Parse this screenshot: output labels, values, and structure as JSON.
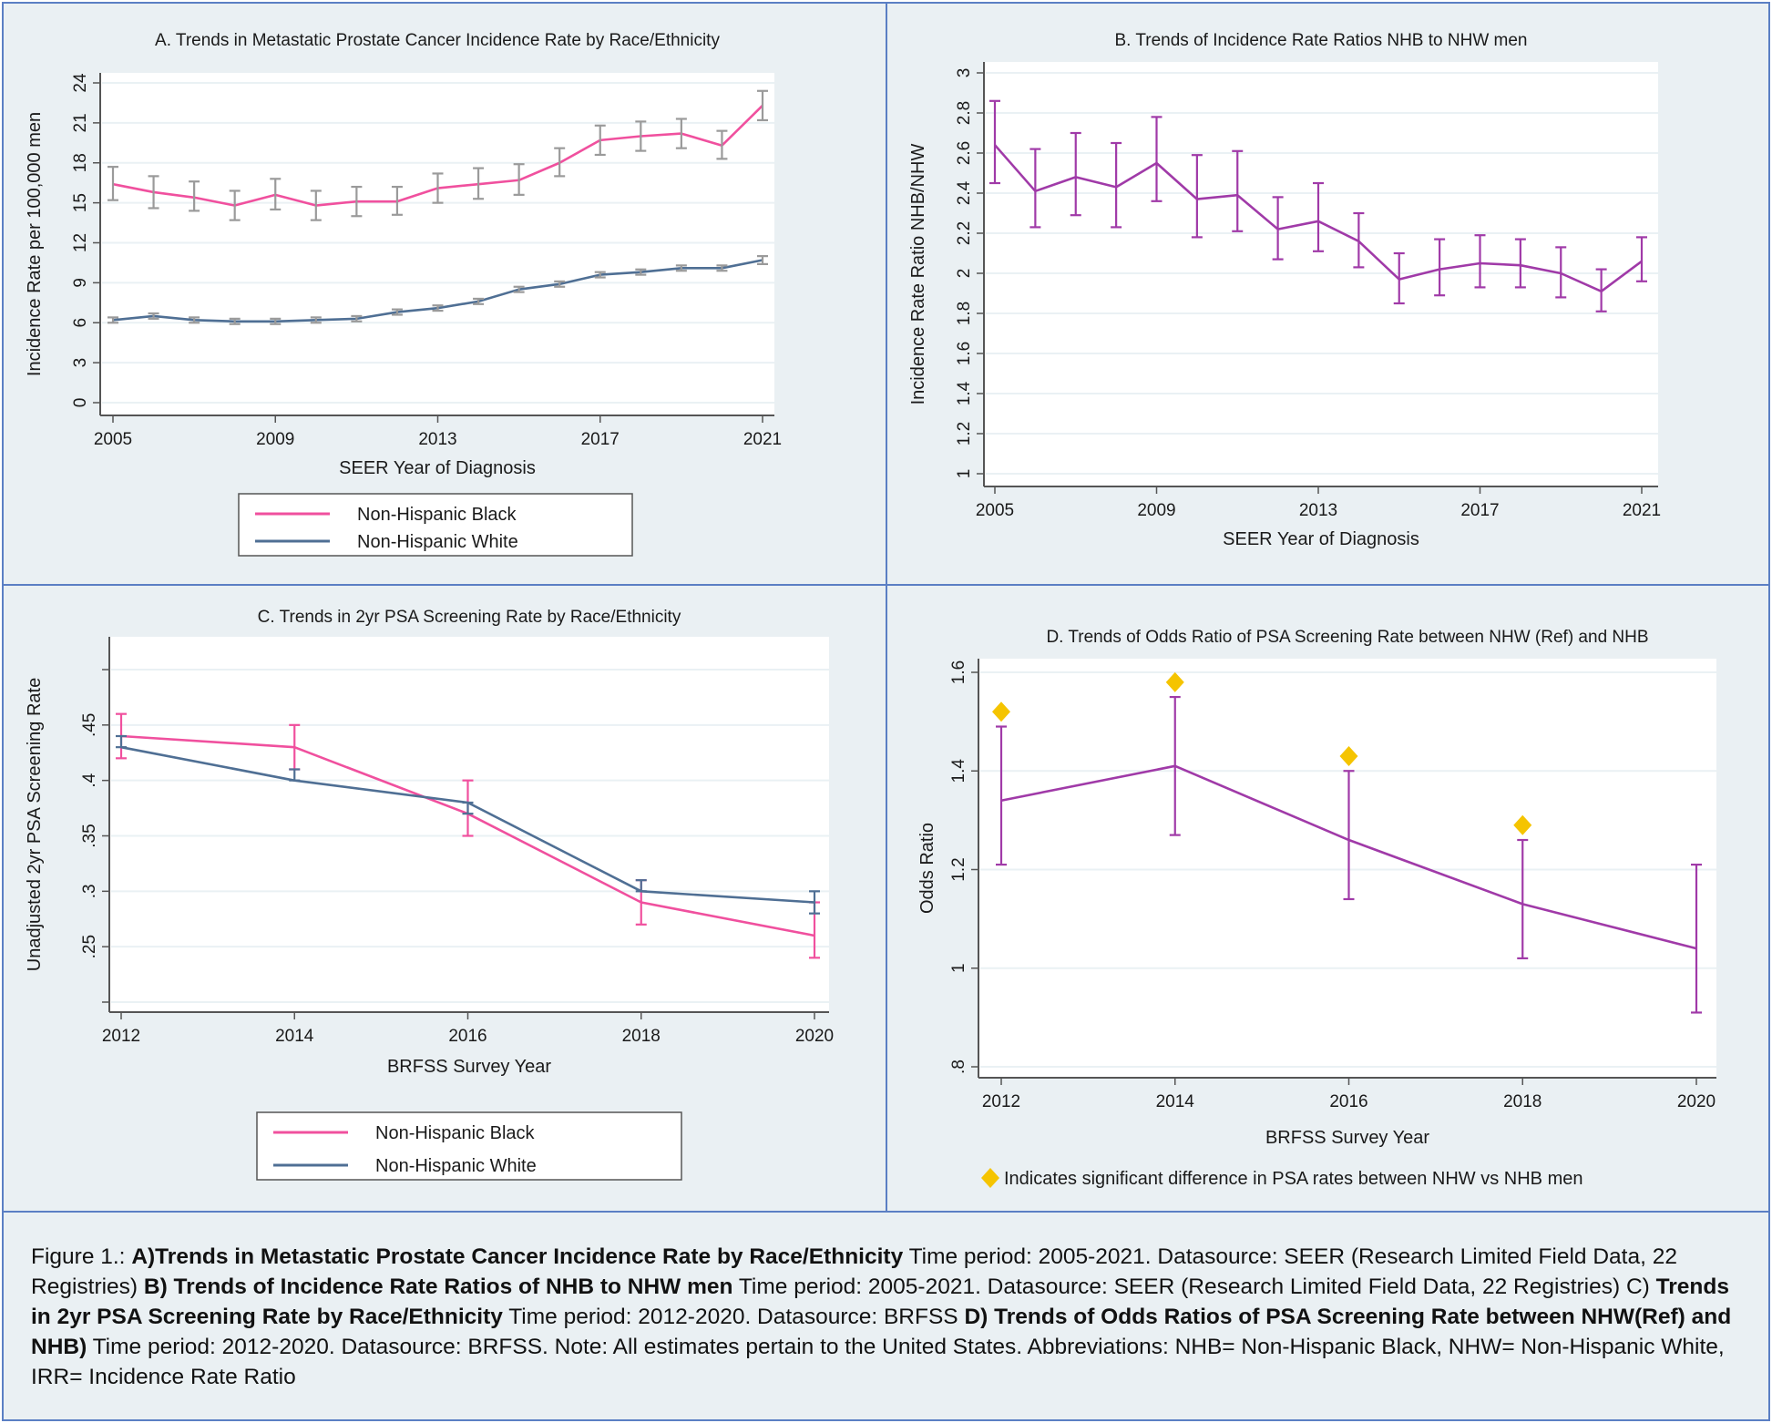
{
  "chart_data": [
    {
      "id": "A",
      "type": "line",
      "title": "A. Trends in Metastatic Prostate Cancer Incidence Rate by Race/Ethnicity",
      "xlabel": "SEER Year of Diagnosis",
      "ylabel": "Incidence Rate per 100,000 men",
      "xlim": [
        2005,
        2021
      ],
      "ylim": [
        0,
        24
      ],
      "xticks": [
        "2005",
        "2009",
        "2013",
        "2017",
        "2021"
      ],
      "yticks": [
        "0",
        "3",
        "6",
        "9",
        "12",
        "15",
        "18",
        "21",
        "24"
      ],
      "grid": true,
      "legend_position": "bottom",
      "x": [
        2005,
        2006,
        2007,
        2008,
        2009,
        2010,
        2011,
        2012,
        2013,
        2014,
        2015,
        2016,
        2017,
        2018,
        2019,
        2020,
        2021
      ],
      "series": [
        {
          "name": "Non-Hispanic Black",
          "color": "#f0509e",
          "values": [
            16.4,
            15.8,
            15.4,
            14.8,
            15.6,
            14.8,
            15.1,
            15.1,
            16.1,
            16.4,
            16.7,
            18.0,
            19.7,
            20.0,
            20.2,
            19.3,
            22.3
          ],
          "ci_low": [
            15.2,
            14.6,
            14.4,
            13.7,
            14.5,
            13.7,
            14.0,
            14.1,
            15.0,
            15.3,
            15.6,
            17.0,
            18.6,
            18.9,
            19.1,
            18.3,
            21.2
          ],
          "ci_high": [
            17.7,
            17.0,
            16.6,
            15.9,
            16.8,
            15.9,
            16.2,
            16.2,
            17.2,
            17.6,
            17.9,
            19.1,
            20.8,
            21.1,
            21.3,
            20.4,
            23.4
          ]
        },
        {
          "name": "Non-Hispanic White",
          "color": "#4f6f94",
          "values": [
            6.2,
            6.5,
            6.2,
            6.1,
            6.1,
            6.2,
            6.3,
            6.8,
            7.1,
            7.6,
            8.5,
            8.9,
            9.6,
            9.8,
            10.1,
            10.1,
            10.7
          ],
          "ci_low": [
            6.0,
            6.3,
            6.0,
            5.9,
            5.9,
            6.0,
            6.1,
            6.6,
            6.9,
            7.4,
            8.3,
            8.7,
            9.4,
            9.6,
            9.9,
            9.9,
            10.4
          ],
          "ci_high": [
            6.4,
            6.7,
            6.4,
            6.3,
            6.3,
            6.4,
            6.5,
            7.0,
            7.3,
            7.8,
            8.7,
            9.1,
            9.8,
            10.0,
            10.3,
            10.3,
            11.0
          ]
        }
      ]
    },
    {
      "id": "B",
      "type": "line",
      "title": "B. Trends of Incidence Rate Ratios NHB to NHW men",
      "xlabel": "SEER Year of Diagnosis",
      "ylabel": "Incidence Rate Ratio NHB/NHW",
      "xlim": [
        2005,
        2021
      ],
      "ylim": [
        1,
        3
      ],
      "xticks": [
        "2005",
        "2009",
        "2013",
        "2017",
        "2021"
      ],
      "yticks": [
        "1",
        "1.2",
        "1.4",
        "1.6",
        "1.8",
        "2",
        "2.2",
        "2.4",
        "2.6",
        "2.8",
        "3"
      ],
      "grid": true,
      "x": [
        2005,
        2006,
        2007,
        2008,
        2009,
        2010,
        2011,
        2012,
        2013,
        2014,
        2015,
        2016,
        2017,
        2018,
        2019,
        2020,
        2021
      ],
      "series": [
        {
          "name": "IRR NHB/NHW",
          "color": "#a03aa8",
          "values": [
            2.64,
            2.41,
            2.48,
            2.43,
            2.55,
            2.37,
            2.39,
            2.22,
            2.26,
            2.16,
            1.97,
            2.02,
            2.05,
            2.04,
            2.0,
            1.91,
            2.06
          ],
          "ci_low": [
            2.45,
            2.23,
            2.29,
            2.23,
            2.36,
            2.18,
            2.21,
            2.07,
            2.11,
            2.03,
            1.85,
            1.89,
            1.93,
            1.93,
            1.88,
            1.81,
            1.96
          ],
          "ci_high": [
            2.86,
            2.62,
            2.7,
            2.65,
            2.78,
            2.59,
            2.61,
            2.38,
            2.45,
            2.3,
            2.1,
            2.17,
            2.19,
            2.17,
            2.13,
            2.02,
            2.18
          ]
        }
      ]
    },
    {
      "id": "C",
      "type": "line",
      "title": "C. Trends in 2yr PSA Screening Rate by Race/Ethnicity",
      "xlabel": "BRFSS Survey Year",
      "ylabel": "Unadjusted 2yr PSA Screening Rate",
      "xlim": [
        2012,
        2020
      ],
      "ylim": [
        0.2,
        0.5
      ],
      "xticks": [
        "2012",
        "2014",
        "2016",
        "2018",
        "2020"
      ],
      "yticks": [
        "",
        ".25",
        ".3",
        ".35",
        ".4",
        ".45",
        ""
      ],
      "ytick_values": [
        0.2,
        0.25,
        0.3,
        0.35,
        0.4,
        0.45,
        0.5
      ],
      "grid": true,
      "legend_position": "bottom",
      "x": [
        2012,
        2014,
        2016,
        2018,
        2020
      ],
      "series": [
        {
          "name": "Non-Hispanic Black",
          "color": "#f0509e",
          "values": [
            0.44,
            0.43,
            0.37,
            0.29,
            0.26
          ],
          "ci_low": [
            0.42,
            0.41,
            0.35,
            0.27,
            0.24
          ],
          "ci_high": [
            0.46,
            0.45,
            0.4,
            0.31,
            0.29
          ]
        },
        {
          "name": "Non-Hispanic White",
          "color": "#4f6f94",
          "values": [
            0.43,
            0.4,
            0.38,
            0.3,
            0.29
          ],
          "ci_low": [
            0.43,
            0.4,
            0.37,
            0.3,
            0.28
          ],
          "ci_high": [
            0.44,
            0.41,
            0.38,
            0.31,
            0.3
          ]
        }
      ]
    },
    {
      "id": "D",
      "type": "line",
      "title": "D. Trends of Odds Ratio of PSA Screening Rate between NHW (Ref) and NHB",
      "xlabel": "BRFSS Survey Year",
      "ylabel": "Odds Ratio",
      "xlim": [
        2012,
        2020
      ],
      "ylim": [
        0.8,
        1.6
      ],
      "xticks": [
        "2012",
        "2014",
        "2016",
        "2018",
        "2020"
      ],
      "yticks": [
        ".8",
        "1",
        "1.2",
        "1.4",
        "1.6"
      ],
      "ytick_values": [
        0.8,
        1.0,
        1.2,
        1.4,
        1.6
      ],
      "grid": true,
      "x": [
        2012,
        2014,
        2016,
        2018,
        2020
      ],
      "series": [
        {
          "name": "Odds Ratio",
          "color": "#a03aa8",
          "values": [
            1.34,
            1.41,
            1.26,
            1.13,
            1.04
          ],
          "ci_low": [
            1.21,
            1.27,
            1.14,
            1.02,
            0.91
          ],
          "ci_high": [
            1.49,
            1.55,
            1.4,
            1.26,
            1.21
          ]
        }
      ],
      "significance_markers": {
        "color": "#f5c400",
        "x": [
          2012,
          2014,
          2016,
          2018
        ],
        "y": [
          1.52,
          1.58,
          1.43,
          1.29
        ]
      },
      "annotation": "Indicates significant difference in PSA rates between NHW vs NHB men"
    }
  ],
  "caption": {
    "prefix": "Figure 1.: ",
    "parts": [
      {
        "bold": "A)Trends in Metastatic Prostate Cancer Incidence Rate by Race/Ethnicity",
        "text": " Time period: 2005-2021. Datasource: SEER (Research Limited Field Data, 22 Registries) "
      },
      {
        "bold": "B) Trends of Incidence Rate Ratios of NHB to NHW men",
        "text": " Time period: 2005-2021. Datasource: SEER (Research Limited Field Data, 22 Registries) C) "
      },
      {
        "bold": "Trends in 2yr PSA Screening Rate by Race/Ethnicity",
        "text": " Time period: 2012-2020. Datasource: BRFSS "
      },
      {
        "bold": "D) Trends of Odds Ratios of PSA Screening Rate between NHW(Ref) and NHB)",
        "text": " Time period: 2012-2020. Datasource: BRFSS. Note: All estimates pertain to the United States. Abbreviations: NHB= Non-Hispanic Black, NHW= Non-Hispanic White, IRR= Incidence Rate Ratio"
      }
    ]
  },
  "colors": {
    "panel_bg": "#eaf0f3",
    "panel_border": "#5b7fc4",
    "errorbar_gray": "#9a9a9a"
  }
}
